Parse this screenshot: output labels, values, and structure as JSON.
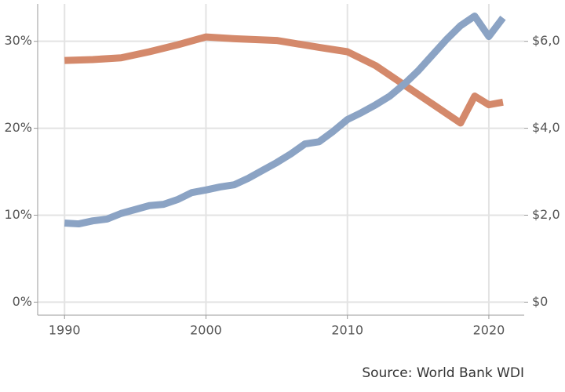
{
  "chart_data": {
    "type": "line",
    "source": "Source: World Bank WDI",
    "xlim": [
      1988.1,
      2022.5
    ],
    "xticks": [
      1990,
      2000,
      2010,
      2020
    ],
    "ylim": [
      -1.5,
      34.3
    ],
    "yticks": [
      {
        "value": 0,
        "label": "0%"
      },
      {
        "value": 10,
        "label": "10%"
      },
      {
        "value": 20,
        "label": "20%"
      },
      {
        "value": 30,
        "label": "30%"
      }
    ],
    "y2lim": [
      -300,
      6860
    ],
    "y2ticks": [
      {
        "value": 0,
        "label": "$0"
      },
      {
        "value": 2000,
        "label": "$2,0"
      },
      {
        "value": 4000,
        "label": "$4,0"
      },
      {
        "value": 6000,
        "label": "$6,0"
      }
    ],
    "grid": true,
    "series": [
      {
        "color": "#d4896b",
        "axis": "y",
        "x": [
          1990,
          1992,
          1994,
          1996,
          1998,
          2000,
          2002,
          2005,
          2008,
          2010,
          2012,
          2014,
          2016,
          2018,
          2019,
          2020,
          2021
        ],
        "values": [
          27.8,
          27.9,
          28.1,
          28.8,
          29.6,
          30.5,
          30.3,
          30.1,
          29.3,
          28.8,
          27.2,
          25.0,
          22.8,
          20.6,
          23.7,
          22.7,
          23.0
        ]
      },
      {
        "color": "#8ba3c4",
        "axis": "y2",
        "x": [
          1990,
          1991,
          1992,
          1993,
          1994,
          1995,
          1996,
          1997,
          1998,
          1999,
          2000,
          2001,
          2002,
          2003,
          2004,
          2005,
          2006,
          2007,
          2008,
          2009,
          2010,
          2011,
          2012,
          2013,
          2014,
          2015,
          2016,
          2017,
          2018,
          2019,
          2020,
          2021
        ],
        "values": [
          1820,
          1800,
          1870,
          1910,
          2040,
          2130,
          2220,
          2250,
          2360,
          2520,
          2580,
          2650,
          2700,
          2850,
          3030,
          3210,
          3410,
          3640,
          3690,
          3930,
          4200,
          4360,
          4540,
          4740,
          5010,
          5320,
          5680,
          6040,
          6360,
          6580,
          6110,
          6540
        ]
      }
    ]
  }
}
